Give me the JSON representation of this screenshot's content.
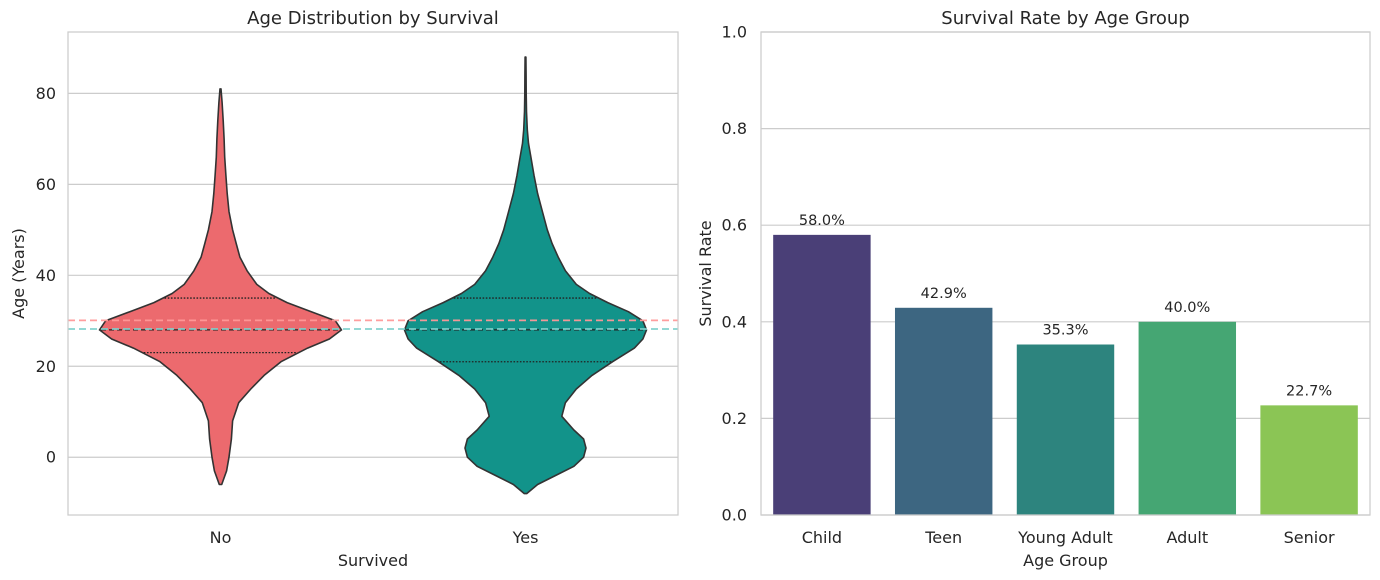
{
  "chart_data": [
    {
      "type": "violin",
      "title": "Age Distribution by Survival",
      "xlabel": "Survived",
      "ylabel": "Age (Years)",
      "categories": [
        "No",
        "Yes"
      ],
      "ylim": [
        -12.7,
        93.5
      ],
      "yticks": [
        0,
        20,
        40,
        60,
        80
      ],
      "grid": true,
      "series": [
        {
          "category": "No",
          "color": "#ec6a6e",
          "min": -6,
          "max": 81,
          "quartiles": [
            23,
            28,
            35
          ],
          "profile": [
            [
              -6,
              0.01
            ],
            [
              -3,
              0.05
            ],
            [
              0,
              0.07
            ],
            [
              4,
              0.09
            ],
            [
              8,
              0.1
            ],
            [
              12,
              0.15
            ],
            [
              15,
              0.25
            ],
            [
              18,
              0.36
            ],
            [
              21,
              0.5
            ],
            [
              24,
              0.72
            ],
            [
              26,
              0.9
            ],
            [
              28,
              1.0
            ],
            [
              30,
              0.95
            ],
            [
              32,
              0.75
            ],
            [
              34,
              0.55
            ],
            [
              36,
              0.4
            ],
            [
              38,
              0.3
            ],
            [
              41,
              0.22
            ],
            [
              44,
              0.16
            ],
            [
              47,
              0.13
            ],
            [
              50,
              0.1
            ],
            [
              54,
              0.07
            ],
            [
              58,
              0.055
            ],
            [
              62,
              0.045
            ],
            [
              66,
              0.035
            ],
            [
              70,
              0.03
            ],
            [
              74,
              0.022
            ],
            [
              78,
              0.013
            ],
            [
              81,
              0.004
            ]
          ]
        },
        {
          "category": "Yes",
          "color": "#12938a",
          "min": -8,
          "max": 88,
          "quartiles": [
            21,
            28,
            35
          ],
          "profile": [
            [
              -8,
              0.01
            ],
            [
              -6,
              0.1
            ],
            [
              -4,
              0.25
            ],
            [
              -2,
              0.4
            ],
            [
              0,
              0.48
            ],
            [
              2,
              0.5
            ],
            [
              4,
              0.48
            ],
            [
              6,
              0.4
            ],
            [
              9,
              0.3
            ],
            [
              12,
              0.33
            ],
            [
              15,
              0.42
            ],
            [
              18,
              0.55
            ],
            [
              21,
              0.72
            ],
            [
              24,
              0.9
            ],
            [
              26,
              0.97
            ],
            [
              28,
              1.0
            ],
            [
              30,
              0.97
            ],
            [
              32,
              0.85
            ],
            [
              34,
              0.68
            ],
            [
              36,
              0.53
            ],
            [
              38,
              0.42
            ],
            [
              41,
              0.33
            ],
            [
              44,
              0.27
            ],
            [
              47,
              0.22
            ],
            [
              50,
              0.18
            ],
            [
              54,
              0.14
            ],
            [
              58,
              0.1
            ],
            [
              62,
              0.07
            ],
            [
              66,
              0.045
            ],
            [
              69,
              0.025
            ],
            [
              72,
              0.015
            ],
            [
              76,
              0.008
            ],
            [
              80,
              0.006
            ],
            [
              84,
              0.005
            ],
            [
              88,
              0.003
            ]
          ]
        }
      ],
      "reference_lines": [
        {
          "value": 30.1,
          "color": "#ff9999"
        },
        {
          "value": 28.2,
          "color": "#7fd1cc"
        }
      ]
    },
    {
      "type": "bar",
      "title": "Survival Rate by Age Group",
      "xlabel": "Age Group",
      "ylabel": "Survival Rate",
      "categories": [
        "Child",
        "Teen",
        "Young Adult",
        "Adult",
        "Senior"
      ],
      "values": [
        0.58,
        0.429,
        0.353,
        0.4,
        0.227
      ],
      "value_labels": [
        "58.0%",
        "42.9%",
        "35.3%",
        "40.0%",
        "22.7%"
      ],
      "colors": [
        "#4a3f77",
        "#3d6681",
        "#2d847e",
        "#45a673",
        "#8bc555"
      ],
      "ylim": [
        0,
        1.0
      ],
      "yticks": [
        "0.0",
        "0.2",
        "0.4",
        "0.6",
        "0.8",
        "1.0"
      ],
      "grid": true
    }
  ]
}
